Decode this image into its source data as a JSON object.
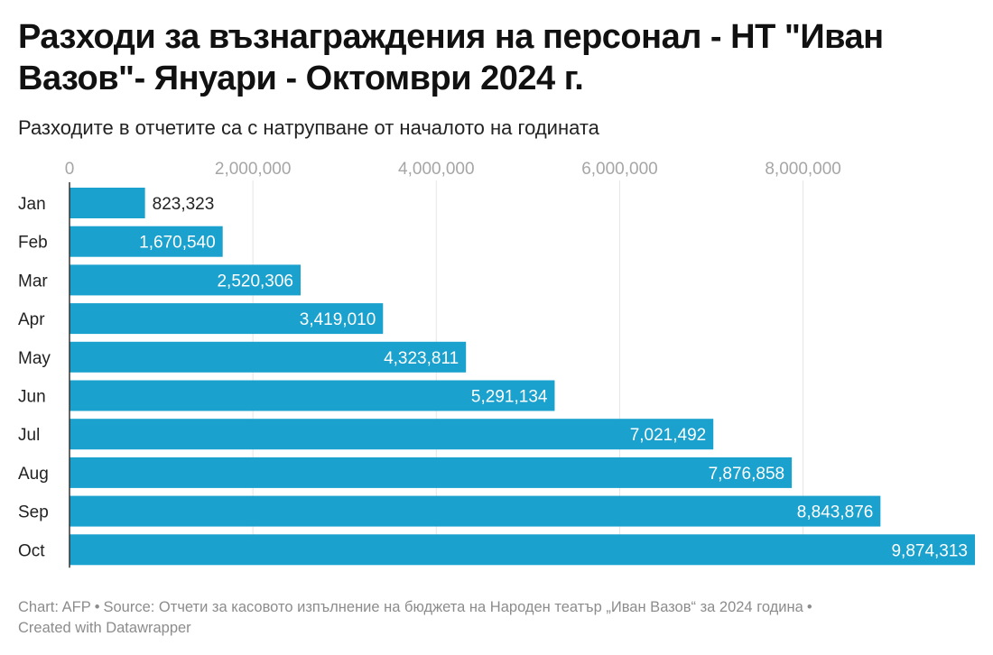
{
  "title": "Разходи за възнаграждения на персонал - НТ \"Иван Вазов\"- Януари - Октомври 2024 г.",
  "subtitle": "Разходите в отчетите са с натрупване от началото на годината",
  "footer": {
    "chart_credit": "Chart: AFP",
    "separator": "•",
    "source": "Source: Отчети за касовото изпълнение на бюджета на Народен театър „Иван Вазов“ за 2024 година",
    "created": "Created with Datawrapper"
  },
  "colors": {
    "bar": "#1aa1cd",
    "grid": "#e6e6e6",
    "axis_text": "#a6a6a6",
    "label_outside": "#222222",
    "label_inside": "#ffffff"
  },
  "chart_data": {
    "type": "bar",
    "orientation": "horizontal",
    "categories": [
      "Jan",
      "Feb",
      "Mar",
      "Apr",
      "May",
      "Jun",
      "Jul",
      "Aug",
      "Sep",
      "Oct"
    ],
    "values": [
      823323,
      1670540,
      2520306,
      3419010,
      4323811,
      5291134,
      7021492,
      7876858,
      8843876,
      9874313
    ],
    "value_labels": [
      "823,323",
      "1,670,540",
      "2,520,306",
      "3,419,010",
      "4,323,811",
      "5,291,134",
      "7,021,492",
      "7,876,858",
      "8,843,876",
      "9,874,313"
    ],
    "x_ticks": [
      0,
      2000000,
      4000000,
      6000000,
      8000000
    ],
    "x_tick_labels": [
      "0",
      "2,000,000",
      "4,000,000",
      "6,000,000",
      "8,000,000"
    ],
    "xlim": [
      0,
      9874313
    ],
    "axis_position": "top",
    "grid": true,
    "title": "Разходи за възнаграждения на персонал - НТ \"Иван Вазов\"- Януари - Октомври 2024 г.",
    "xlabel": "",
    "ylabel": ""
  }
}
